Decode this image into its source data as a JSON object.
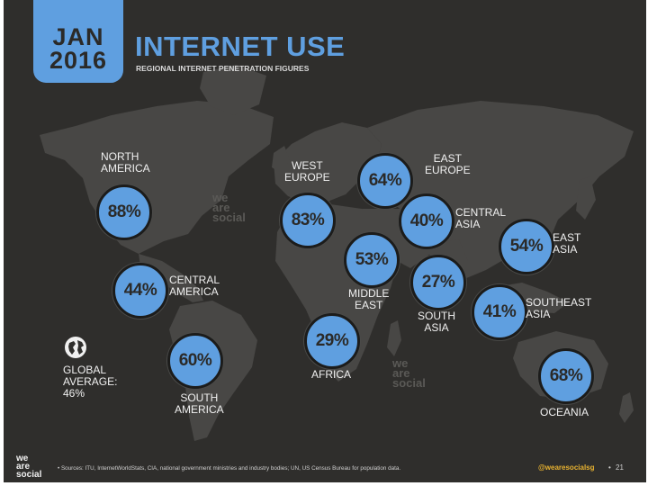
{
  "header": {
    "date_month": "JAN",
    "date_year": "2016",
    "title": "INTERNET USE",
    "subtitle": "REGIONAL INTERNET PENETRATION FIGURES"
  },
  "regions": [
    {
      "id": "north-america",
      "value": "88%",
      "name": "NORTH\nAMERICA"
    },
    {
      "id": "central-america",
      "value": "44%",
      "name": "CENTRAL\nAMERICA"
    },
    {
      "id": "south-america",
      "value": "60%",
      "name": "SOUTH\nAMERICA"
    },
    {
      "id": "west-europe",
      "value": "83%",
      "name": "WEST\nEUROPE"
    },
    {
      "id": "east-europe",
      "value": "64%",
      "name": "EAST\nEUROPE"
    },
    {
      "id": "central-asia",
      "value": "40%",
      "name": "CENTRAL\nASIA"
    },
    {
      "id": "middle-east",
      "value": "53%",
      "name": "MIDDLE\nEAST"
    },
    {
      "id": "africa",
      "value": "29%",
      "name": "AFRICA"
    },
    {
      "id": "south-asia",
      "value": "27%",
      "name": "SOUTH\nASIA"
    },
    {
      "id": "east-asia",
      "value": "54%",
      "name": "EAST\nASIA"
    },
    {
      "id": "southeast-asia",
      "value": "41%",
      "name": "SOUTHEAST\nASIA"
    },
    {
      "id": "oceania",
      "value": "68%",
      "name": "OCEANIA"
    }
  ],
  "global": {
    "label": "GLOBAL\nAVERAGE:\n46%",
    "icon": "globe-icon"
  },
  "watermark": "we\nare\nsocial",
  "footer": {
    "logo": "we\nare\nsocial",
    "sources": "•  Sources: ITU, InternetWorldStats, CIA, national government ministries and industry bodies; UN, US Census Bureau for population data.",
    "handle": "@wearesocialsg",
    "separator": "•",
    "page": "21"
  },
  "colors": {
    "background": "#2f2e2c",
    "land": "#484745",
    "accent": "#5f9fe0",
    "handle": "#e8b230"
  }
}
